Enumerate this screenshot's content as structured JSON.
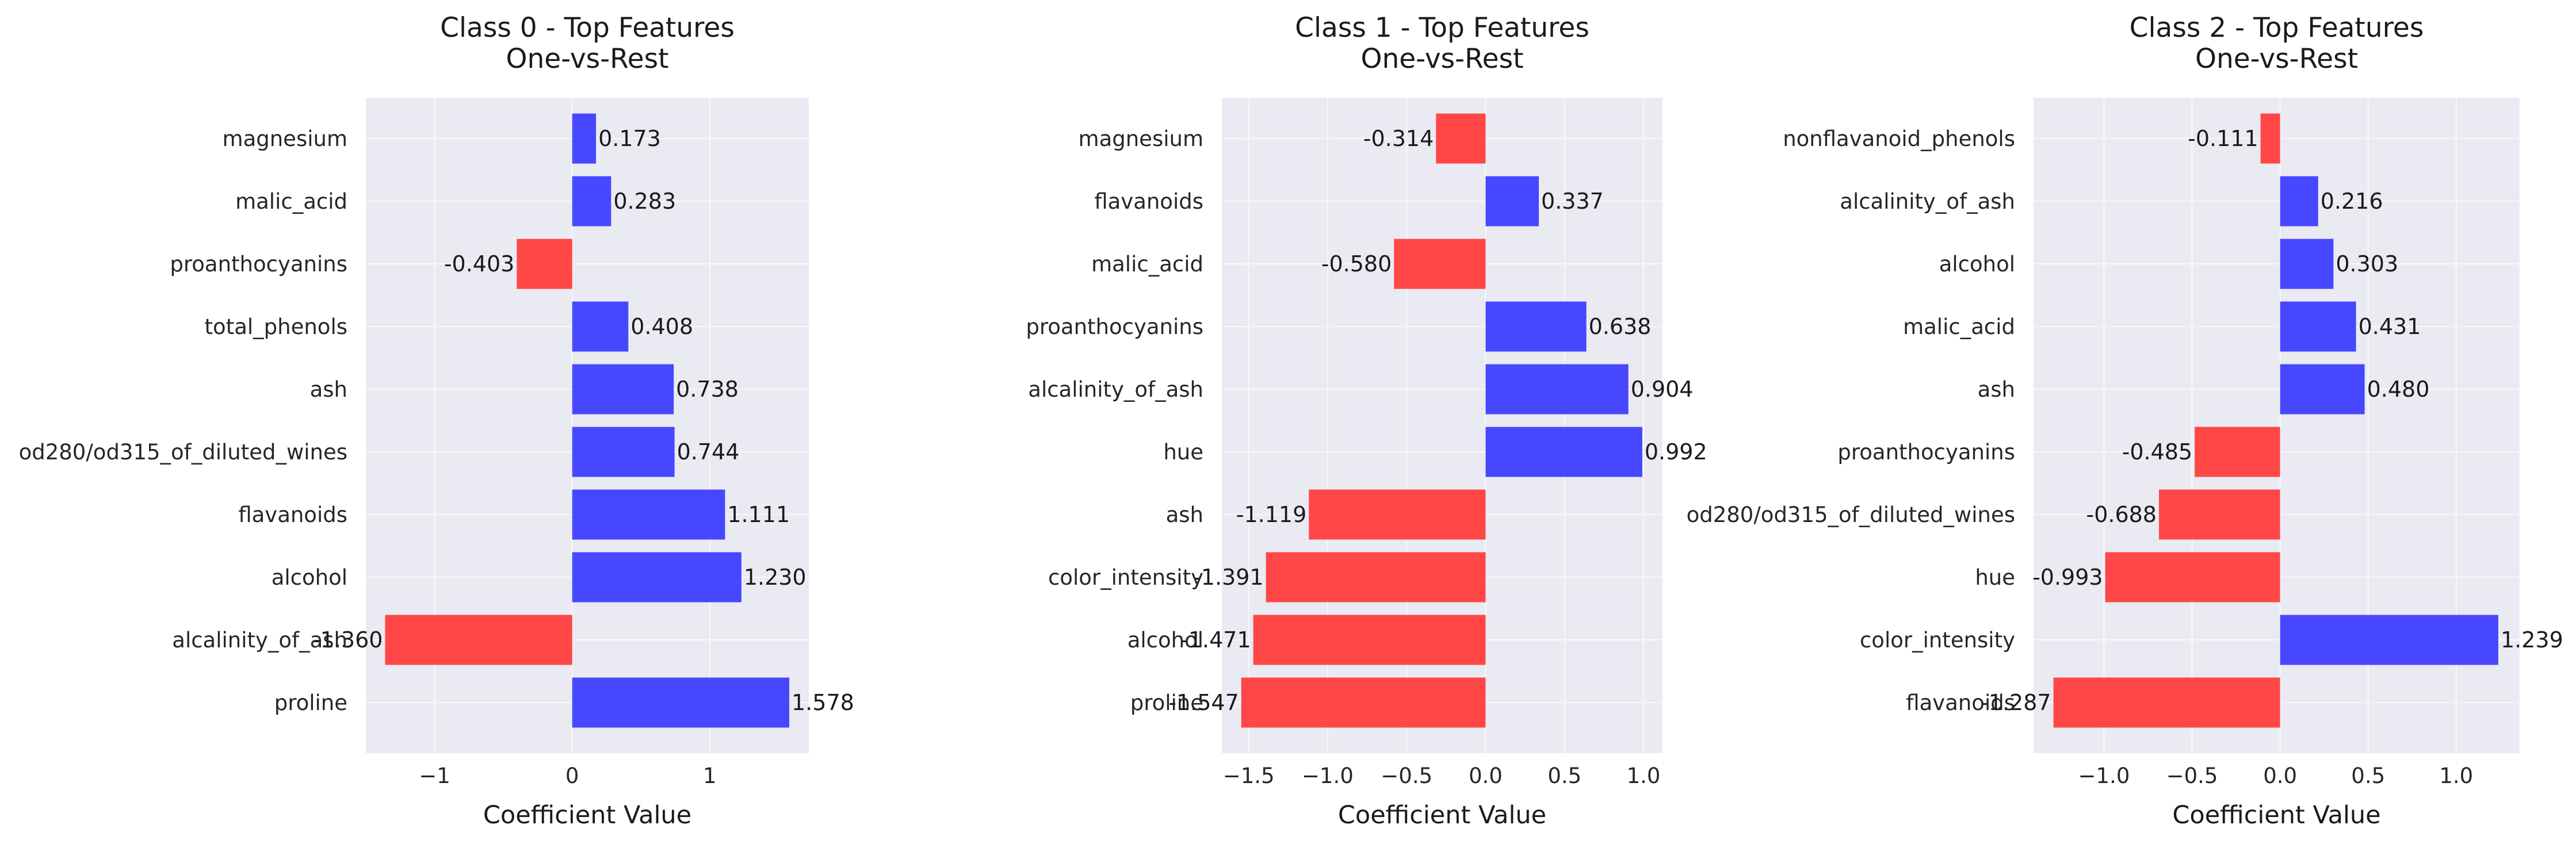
{
  "colors": {
    "positive": "#4747ff",
    "negative": "#ff4747",
    "plot_background": "#eaeaf2",
    "grid": "#ffffff"
  },
  "chart_data": [
    {
      "type": "bar",
      "orientation": "horizontal",
      "title": "Class 0 - Top Features\nOne-vs-Rest",
      "xlabel": "Coefficient Value",
      "ylabel": "",
      "xlim": [
        -1.5,
        1.72
      ],
      "xticks": [
        -1,
        0,
        1
      ],
      "xtick_labels": [
        "−1",
        "0",
        "1"
      ],
      "grid": true,
      "categories": [
        "magnesium",
        "malic_acid",
        "proanthocyanins",
        "total_phenols",
        "ash",
        "od280/od315_of_diluted_wines",
        "flavanoids",
        "alcohol",
        "alcalinity_of_ash",
        "proline"
      ],
      "values": [
        0.173,
        0.283,
        -0.403,
        0.408,
        0.738,
        0.744,
        1.111,
        1.23,
        -1.36,
        1.578
      ],
      "value_labels": [
        "0.173",
        "0.283",
        "-0.403",
        "0.408",
        "0.738",
        "0.744",
        "1.111",
        "1.230",
        "-1.360",
        "1.578"
      ]
    },
    {
      "type": "bar",
      "orientation": "horizontal",
      "title": "Class 1 - Top Features\nOne-vs-Rest",
      "xlabel": "Coefficient Value",
      "ylabel": "",
      "xlim": [
        -1.67,
        1.12
      ],
      "xticks": [
        -1.5,
        -1.0,
        -0.5,
        0.0,
        0.5,
        1.0
      ],
      "xtick_labels": [
        "−1.5",
        "−1.0",
        "−0.5",
        "0.0",
        "0.5",
        "1.0"
      ],
      "grid": true,
      "categories": [
        "magnesium",
        "flavanoids",
        "malic_acid",
        "proanthocyanins",
        "alcalinity_of_ash",
        "hue",
        "ash",
        "color_intensity",
        "alcohol",
        "proline"
      ],
      "values": [
        -0.314,
        0.337,
        -0.58,
        0.638,
        0.904,
        0.992,
        -1.119,
        -1.391,
        -1.471,
        -1.547
      ],
      "value_labels": [
        "-0.314",
        "0.337",
        "-0.580",
        "0.638",
        "0.904",
        "0.992",
        "-1.119",
        "-1.391",
        "-1.471",
        "-1.547"
      ]
    },
    {
      "type": "bar",
      "orientation": "horizontal",
      "title": "Class 2 - Top Features\nOne-vs-Rest",
      "xlabel": "Coefficient Value",
      "ylabel": "",
      "xlim": [
        -1.4,
        1.36
      ],
      "xticks": [
        -1.0,
        -0.5,
        0.0,
        0.5,
        1.0
      ],
      "xtick_labels": [
        "−1.0",
        "−0.5",
        "0.0",
        "0.5",
        "1.0"
      ],
      "grid": true,
      "categories": [
        "nonflavanoid_phenols",
        "alcalinity_of_ash",
        "alcohol",
        "malic_acid",
        "ash",
        "proanthocyanins",
        "od280/od315_of_diluted_wines",
        "hue",
        "color_intensity",
        "flavanoids"
      ],
      "values": [
        -0.111,
        0.216,
        0.303,
        0.431,
        0.48,
        -0.485,
        -0.688,
        -0.993,
        1.239,
        -1.287
      ],
      "value_labels": [
        "-0.111",
        "0.216",
        "0.303",
        "0.431",
        "0.480",
        "-0.485",
        "-0.688",
        "-0.993",
        "1.239",
        "-1.287"
      ]
    }
  ]
}
